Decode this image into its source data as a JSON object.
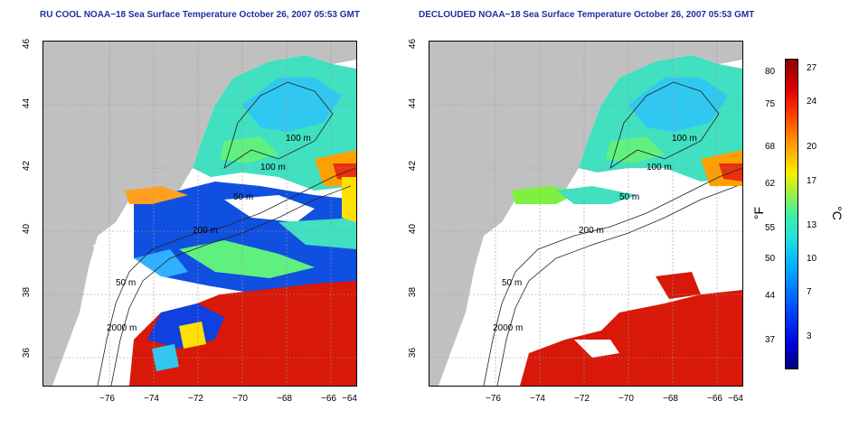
{
  "left_panel": {
    "title": "RU COOL NOAA−18 Sea Surface Temperature October 26, 2007 05:53 GMT",
    "contour_labels": [
      "100 m",
      "100 m",
      "50 m",
      "200 m",
      "50 m",
      "2000 m"
    ]
  },
  "right_panel": {
    "title": "DECLOUDED NOAA−18 Sea Surface Temperature October 26, 2007 05:53 GMT",
    "contour_labels": [
      "100 m",
      "100 m",
      "50 m",
      "200 m",
      "50 m",
      "2000 m"
    ]
  },
  "x_ticks": [
    "−76",
    "−74",
    "−72",
    "−70",
    "−68",
    "−66",
    "−64"
  ],
  "y_ticks": [
    "36",
    "38",
    "40",
    "42",
    "44",
    "46"
  ],
  "colorbar": {
    "fahrenheit_label": "°F",
    "celsius_label": "°C",
    "fahrenheit_ticks": [
      "80",
      "75",
      "68",
      "62",
      "55",
      "50",
      "44",
      "37"
    ],
    "celsius_ticks": [
      "27",
      "24",
      "20",
      "17",
      "13",
      "10",
      "7",
      "3"
    ]
  },
  "colors": {
    "title": "#1f2f9f",
    "land": "#c0c0c0",
    "warm": "#d81808",
    "cold": "#1040e0",
    "mid": "#40e0c0"
  }
}
